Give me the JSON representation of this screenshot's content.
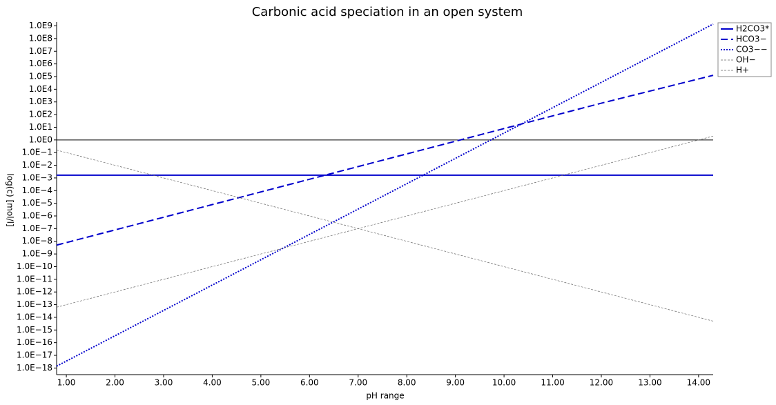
{
  "chart_data": {
    "type": "line",
    "title": "Carbonic acid speciation in an open system",
    "x_label": "pH range",
    "y_label": "log(c) [mol/l]",
    "log_y": true,
    "legend": "upper right",
    "baseline": 1,
    "x": [
      0.8,
      2,
      4,
      6,
      8,
      10,
      12,
      14.3
    ],
    "xlim": [
      0.8,
      14.3
    ],
    "ylim": [
      3e-19,
      2000000000.0
    ],
    "xticks": [
      {
        "value": 1,
        "label": "1.00"
      },
      {
        "value": 2,
        "label": "2.00"
      },
      {
        "value": 3,
        "label": "3.00"
      },
      {
        "value": 4,
        "label": "4.00"
      },
      {
        "value": 5,
        "label": "5.00"
      },
      {
        "value": 6,
        "label": "6.00"
      },
      {
        "value": 7,
        "label": "7.00"
      },
      {
        "value": 8,
        "label": "8.00"
      },
      {
        "value": 9,
        "label": "9.00"
      },
      {
        "value": 10,
        "label": "10.00"
      },
      {
        "value": 11,
        "label": "11.00"
      },
      {
        "value": 12,
        "label": "12.00"
      },
      {
        "value": 13,
        "label": "13.00"
      },
      {
        "value": 14,
        "label": "14.00"
      }
    ],
    "yticks": [
      {
        "value": 1000000000.0,
        "label": "1.0E9"
      },
      {
        "value": 100000000.0,
        "label": "1.0E8"
      },
      {
        "value": 10000000.0,
        "label": "1.0E7"
      },
      {
        "value": 1000000.0,
        "label": "1.0E6"
      },
      {
        "value": 100000.0,
        "label": "1.0E5"
      },
      {
        "value": 10000.0,
        "label": "1.0E4"
      },
      {
        "value": 1000.0,
        "label": "1.0E3"
      },
      {
        "value": 100.0,
        "label": "1.0E2"
      },
      {
        "value": 10.0,
        "label": "1.0E1"
      },
      {
        "value": 1,
        "label": "1.0E0"
      },
      {
        "value": 0.1,
        "label": "1.0E−1"
      },
      {
        "value": 0.01,
        "label": "1.0E−2"
      },
      {
        "value": 0.001,
        "label": "1.0E−3"
      },
      {
        "value": 0.0001,
        "label": "1.0E−4"
      },
      {
        "value": 1e-05,
        "label": "1.0E−5"
      },
      {
        "value": 1e-06,
        "label": "1.0E−6"
      },
      {
        "value": 1e-07,
        "label": "1.0E−7"
      },
      {
        "value": 1e-08,
        "label": "1.0E−8"
      },
      {
        "value": 1e-09,
        "label": "1.0E−9"
      },
      {
        "value": 1e-10,
        "label": "1.0E−10"
      },
      {
        "value": 1e-11,
        "label": "1.0E−11"
      },
      {
        "value": 1e-12,
        "label": "1.0E−12"
      },
      {
        "value": 1e-13,
        "label": "1.0E−13"
      },
      {
        "value": 1e-14,
        "label": "1.0E−14"
      },
      {
        "value": 1e-15,
        "label": "1.0E−15"
      },
      {
        "value": 1e-16,
        "label": "1.0E−16"
      },
      {
        "value": 1e-17,
        "label": "1.0E−17"
      },
      {
        "value": 1e-18,
        "label": "1.0E−18"
      }
    ],
    "series": [
      {
        "name": "H2CO3*",
        "color": "#0000cc",
        "style": "solid",
        "values": [
          0.00166,
          0.00166,
          0.00166,
          0.00166,
          0.00166,
          0.00166,
          0.00166,
          0.00166
        ]
      },
      {
        "name": "HCO3−",
        "color": "#0000cc",
        "style": "dashed",
        "values": [
          5e-09,
          7.9e-08,
          7.9e-06,
          0.00079,
          0.079,
          7.9,
          794,
          126000.0
        ]
      },
      {
        "name": "CO3−−",
        "color": "#0000cc",
        "style": "dotted",
        "values": [
          1.4e-18,
          3.5e-16,
          3.5e-12,
          3.5e-08,
          0.00035,
          3.5,
          35000.0,
          1400000000.0
        ]
      },
      {
        "name": "OH−",
        "color": "#666666",
        "style": "fine-dashed",
        "values": [
          6.3e-14,
          1e-12,
          1e-10,
          1e-08,
          1e-06,
          0.0001,
          0.01,
          2.0
        ]
      },
      {
        "name": "H+",
        "color": "#666666",
        "style": "fine-dashed",
        "values": [
          0.158,
          0.01,
          0.0001,
          1e-06,
          1e-08,
          1e-10,
          1e-12,
          5e-15
        ]
      }
    ]
  }
}
